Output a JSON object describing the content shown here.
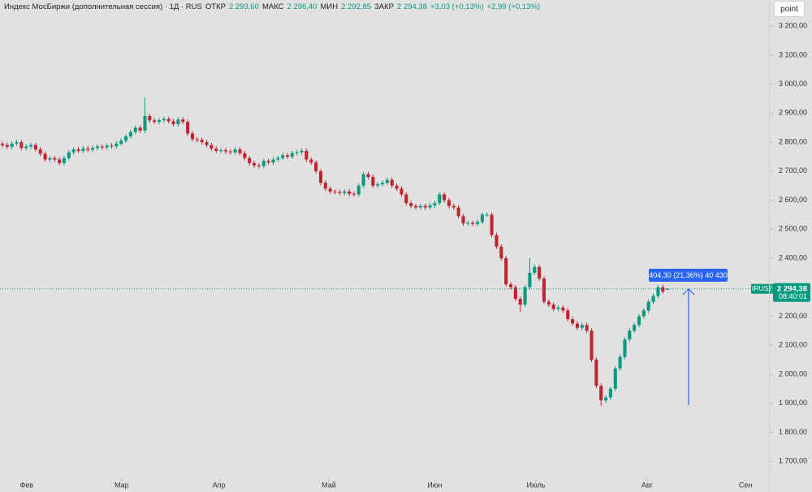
{
  "header": {
    "title": "Индекс МосБиржи (дополнительная сессия) · 1Д · RUS",
    "open_label": "ОТКР",
    "open": "2 293,60",
    "high_label": "МАКС",
    "high": "2 296,40",
    "low_label": "МИН",
    "low": "2 292,85",
    "close_label": "ЗАКР",
    "close": "2 294,38",
    "change": "+3,03 (+0,13%)",
    "change2": "+2,99 (+0,13%)"
  },
  "toolbar": {
    "button": "point"
  },
  "chart_data": {
    "type": "candlestick",
    "x": [
      0,
      1,
      2,
      3,
      4,
      5,
      6,
      7,
      8,
      9,
      10,
      11,
      12,
      13,
      14,
      15,
      16,
      17,
      18,
      19,
      20,
      21,
      22,
      23,
      24,
      25,
      26,
      27,
      28,
      29,
      30,
      31,
      32,
      33,
      34,
      35,
      36,
      37,
      38,
      39,
      40,
      41,
      42,
      43,
      44,
      45,
      46,
      47,
      48,
      49,
      50,
      51,
      52,
      53,
      54,
      55,
      56,
      57,
      58,
      59,
      60,
      61,
      62,
      63,
      64,
      65,
      66,
      67,
      68,
      69,
      70,
      71,
      72,
      73,
      74,
      75,
      76,
      77,
      78,
      79,
      80,
      81,
      82,
      83,
      84,
      85,
      86,
      87,
      88,
      89,
      90,
      91,
      92,
      93,
      94,
      95,
      96,
      97,
      98,
      99,
      100,
      101,
      102,
      103,
      104,
      105,
      106,
      107,
      108,
      109,
      110,
      111,
      112,
      113,
      114,
      115,
      116,
      117,
      118,
      119,
      120,
      121,
      122,
      123,
      124,
      125,
      126,
      127,
      128,
      129,
      130,
      131,
      132,
      133,
      134,
      135,
      136,
      137,
      138,
      139,
      140
    ],
    "open": [
      2795,
      2790,
      2784,
      2795,
      2800,
      2780,
      2785,
      2790,
      2775,
      2760,
      2740,
      2745,
      2740,
      2728,
      2745,
      2765,
      2775,
      2770,
      2778,
      2774,
      2780,
      2785,
      2782,
      2788,
      2786,
      2795,
      2805,
      2820,
      2835,
      2850,
      2840,
      2890,
      2875,
      2870,
      2876,
      2880,
      2872,
      2862,
      2878,
      2870,
      2830,
      2810,
      2808,
      2800,
      2790,
      2778,
      2770,
      2772,
      2768,
      2765,
      2775,
      2762,
      2745,
      2728,
      2720,
      2718,
      2735,
      2730,
      2740,
      2745,
      2755,
      2750,
      2762,
      2765,
      2770,
      2740,
      2730,
      2700,
      2660,
      2640,
      2630,
      2628,
      2625,
      2630,
      2622,
      2620,
      2650,
      2690,
      2680,
      2650,
      2655,
      2660,
      2670,
      2650,
      2640,
      2620,
      2590,
      2580,
      2575,
      2580,
      2575,
      2582,
      2590,
      2620,
      2600,
      2580,
      2575,
      2545,
      2520,
      2522,
      2518,
      2525,
      2550,
      2550,
      2480,
      2440,
      2400,
      2310,
      2300,
      2260,
      2240,
      2300,
      2350,
      2370,
      2330,
      2250,
      2240,
      2225,
      2230,
      2220,
      2190,
      2175,
      2160,
      2170,
      2150,
      2050,
      1960,
      1910,
      1920,
      1950,
      2020,
      2060,
      2120,
      2150,
      2170,
      2200,
      2220,
      2250,
      2270,
      2300,
      2293.6
    ],
    "high": [
      2803,
      2798,
      2803,
      2808,
      2808,
      2793,
      2798,
      2798,
      2783,
      2768,
      2753,
      2753,
      2748,
      2753,
      2773,
      2783,
      2783,
      2786,
      2786,
      2788,
      2793,
      2793,
      2796,
      2796,
      2803,
      2813,
      2828,
      2843,
      2858,
      2858,
      2955,
      2898,
      2883,
      2884,
      2888,
      2888,
      2880,
      2886,
      2886,
      2878,
      2838,
      2818,
      2816,
      2808,
      2798,
      2786,
      2780,
      2780,
      2776,
      2783,
      2783,
      2770,
      2753,
      2736,
      2728,
      2743,
      2743,
      2748,
      2753,
      2763,
      2763,
      2770,
      2773,
      2778,
      2778,
      2748,
      2738,
      2708,
      2668,
      2648,
      2638,
      2636,
      2638,
      2638,
      2630,
      2658,
      2698,
      2698,
      2688,
      2663,
      2668,
      2678,
      2678,
      2658,
      2648,
      2628,
      2598,
      2588,
      2588,
      2588,
      2590,
      2598,
      2628,
      2628,
      2608,
      2588,
      2583,
      2553,
      2530,
      2530,
      2533,
      2558,
      2558,
      2558,
      2488,
      2448,
      2408,
      2318,
      2308,
      2268,
      2308,
      2400,
      2378,
      2378,
      2338,
      2258,
      2248,
      2238,
      2238,
      2228,
      2198,
      2183,
      2178,
      2178,
      2158,
      2058,
      1968,
      1928,
      1958,
      2028,
      2068,
      2128,
      2158,
      2178,
      2208,
      2228,
      2258,
      2278,
      2308,
      2308,
      2296.4
    ],
    "low": [
      2782,
      2776,
      2776,
      2787,
      2772,
      2772,
      2777,
      2767,
      2752,
      2732,
      2732,
      2732,
      2720,
      2720,
      2737,
      2757,
      2762,
      2762,
      2766,
      2766,
      2772,
      2774,
      2774,
      2778,
      2778,
      2787,
      2797,
      2812,
      2827,
      2832,
      2832,
      2867,
      2862,
      2862,
      2868,
      2864,
      2854,
      2854,
      2862,
      2822,
      2802,
      2800,
      2792,
      2782,
      2770,
      2762,
      2762,
      2760,
      2757,
      2757,
      2754,
      2737,
      2720,
      2712,
      2710,
      2710,
      2722,
      2722,
      2732,
      2737,
      2742,
      2742,
      2754,
      2757,
      2732,
      2722,
      2692,
      2652,
      2632,
      2622,
      2620,
      2617,
      2617,
      2614,
      2612,
      2612,
      2642,
      2672,
      2642,
      2642,
      2647,
      2652,
      2642,
      2632,
      2612,
      2582,
      2572,
      2567,
      2567,
      2567,
      2567,
      2574,
      2582,
      2592,
      2572,
      2567,
      2537,
      2512,
      2512,
      2510,
      2510,
      2517,
      2542,
      2472,
      2432,
      2392,
      2302,
      2292,
      2252,
      2215,
      2232,
      2292,
      2342,
      2322,
      2242,
      2232,
      2217,
      2217,
      2212,
      2182,
      2167,
      2152,
      2152,
      2142,
      2042,
      1952,
      1890,
      1902,
      1912,
      1942,
      2012,
      2052,
      2112,
      2142,
      2162,
      2192,
      2212,
      2242,
      2262,
      2277,
      2292.85
    ],
    "close": [
      2790,
      2784,
      2795,
      2800,
      2780,
      2785,
      2790,
      2775,
      2760,
      2740,
      2745,
      2740,
      2728,
      2745,
      2765,
      2775,
      2770,
      2778,
      2774,
      2780,
      2785,
      2782,
      2788,
      2786,
      2795,
      2805,
      2820,
      2835,
      2850,
      2840,
      2890,
      2875,
      2870,
      2876,
      2880,
      2872,
      2862,
      2878,
      2870,
      2830,
      2810,
      2808,
      2800,
      2790,
      2778,
      2770,
      2772,
      2768,
      2765,
      2775,
      2762,
      2745,
      2728,
      2720,
      2718,
      2735,
      2730,
      2740,
      2745,
      2755,
      2750,
      2762,
      2765,
      2770,
      2740,
      2730,
      2700,
      2660,
      2640,
      2630,
      2628,
      2625,
      2630,
      2622,
      2620,
      2650,
      2690,
      2680,
      2650,
      2655,
      2660,
      2670,
      2650,
      2640,
      2620,
      2590,
      2580,
      2575,
      2580,
      2575,
      2582,
      2590,
      2620,
      2600,
      2580,
      2575,
      2545,
      2520,
      2522,
      2518,
      2525,
      2550,
      2550,
      2480,
      2440,
      2400,
      2310,
      2300,
      2260,
      2240,
      2300,
      2350,
      2370,
      2330,
      2250,
      2240,
      2225,
      2230,
      2220,
      2190,
      2175,
      2160,
      2170,
      2150,
      2050,
      1960,
      1910,
      1920,
      1950,
      2020,
      2060,
      2120,
      2150,
      2170,
      2200,
      2220,
      2250,
      2270,
      2300,
      2285,
      2294.38
    ],
    "up_color": "#089981",
    "down_color": "#c2242f",
    "xlim": [
      -0.5,
      161
    ],
    "ylim": [
      1653,
      3290
    ],
    "xticks": [
      {
        "value": 5.1,
        "label": "Фев"
      },
      {
        "value": 25.1,
        "label": "Мар"
      },
      {
        "value": 45.6,
        "label": "Апр"
      },
      {
        "value": 68.7,
        "label": "Май"
      },
      {
        "value": 91,
        "label": "Июн"
      },
      {
        "value": 112.3,
        "label": "Июль"
      },
      {
        "value": 135.7,
        "label": "Авг"
      },
      {
        "value": 156.4,
        "label": "Сен"
      }
    ],
    "yticks": [
      {
        "value": 1700,
        "label": "1 700,00"
      },
      {
        "value": 1800,
        "label": "1 800,00"
      },
      {
        "value": 1900,
        "label": "1 900,00"
      },
      {
        "value": 2000,
        "label": "2 000,00"
      },
      {
        "value": 2100,
        "label": "2 100,00"
      },
      {
        "value": 2200,
        "label": "2 200,00"
      },
      {
        "value": 2300,
        "label": "2 300,00"
      },
      {
        "value": 2400,
        "label": "2 400,00"
      },
      {
        "value": 2500,
        "label": "2 500,00"
      },
      {
        "value": 2600,
        "label": "2 600,00"
      },
      {
        "value": 2700,
        "label": "2 700,00"
      },
      {
        "value": 2800,
        "label": "2 800,00"
      },
      {
        "value": 2900,
        "label": "2 900,00"
      },
      {
        "value": 3000,
        "label": "3 000,00"
      },
      {
        "value": 3100,
        "label": "3 100,00"
      },
      {
        "value": 3200,
        "label": "3 200,00"
      }
    ],
    "last_price_label": "2 294,38",
    "countdown": "08:40:01",
    "symbol_label": "IRUS2",
    "measure_label": "404,30 (21,36%) 40 430"
  }
}
